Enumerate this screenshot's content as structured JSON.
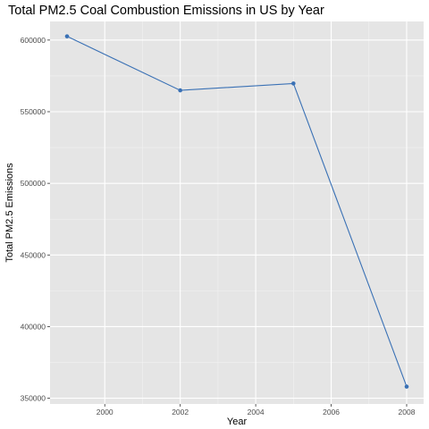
{
  "chart_data": {
    "type": "line",
    "title": "Total PM2.5 Coal Combustion Emissions in US by Year",
    "xlabel": "Year",
    "ylabel": "Total PM2.5 Emissions",
    "x": [
      1999,
      2002,
      2005,
      2008
    ],
    "series": [
      {
        "values": [
          602600,
          564900,
          569700,
          358100
        ]
      }
    ],
    "xlim": [
      1998.55,
      2008.45
    ],
    "ylim": [
      346000,
      613000
    ],
    "x_ticks": [
      2000,
      2002,
      2004,
      2006,
      2008
    ],
    "x_tick_labels": [
      "2000",
      "2002",
      "2004",
      "2006",
      "2008"
    ],
    "y_ticks": [
      350000,
      400000,
      450000,
      500000,
      550000,
      600000
    ],
    "y_tick_labels": [
      "350000",
      "400000",
      "450000",
      "500000",
      "550000",
      "600000"
    ],
    "grid": true,
    "legend": "none",
    "colors": {
      "panel_background": "#e5e5e5",
      "grid_major": "#ffffff",
      "grid_minor": "#f2f2f2",
      "series_line": "#3a71b5",
      "series_point": "#3a71b5",
      "tick_label": "#4d4d4d",
      "text": "#000000"
    }
  }
}
